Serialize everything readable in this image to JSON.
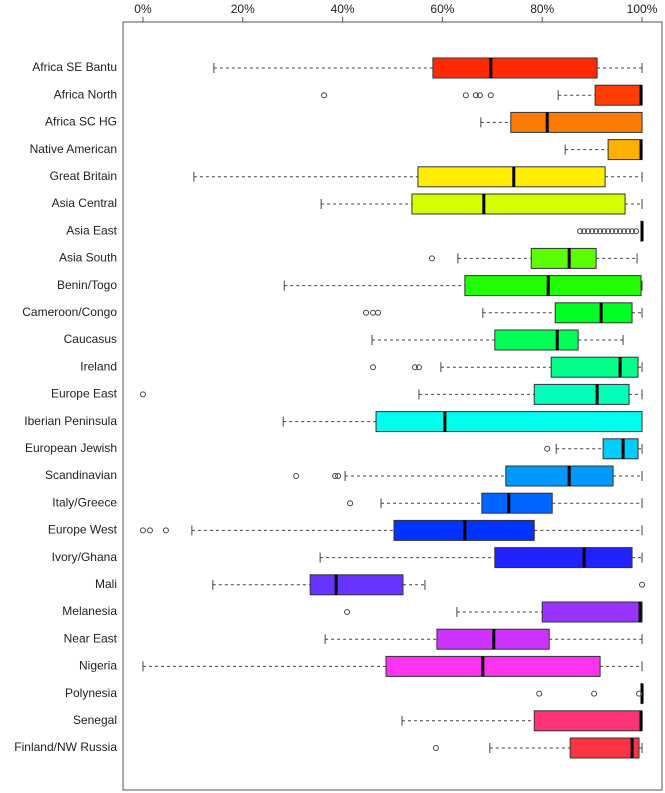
{
  "chart_data": {
    "type": "boxplot",
    "orientation": "horizontal",
    "categories": [
      "Africa SE Bantu",
      "Africa North",
      "Africa SC HG",
      "Native American",
      "Great Britain",
      "Asia Central",
      "Asia East",
      "Asia South",
      "Benin/Togo",
      "Cameroon/Congo",
      "Caucasus",
      "Ireland",
      "Europe East",
      "Iberian Peninsula",
      "European Jewish",
      "Scandinavian",
      "Italy/Greece",
      "Europe West",
      "Ivory/Ghana",
      "Mali",
      "Melanesia",
      "Near East",
      "Nigeria",
      "Polynesia",
      "Senegal",
      "Finland/NW Russia"
    ],
    "boxes": [
      {
        "min": 14.2,
        "q1": 58.1,
        "median": 69.7,
        "q3": 91.0,
        "max": 100,
        "outliers": [],
        "color": "#ff2a00"
      },
      {
        "min": 83.2,
        "q1": 90.6,
        "median": 99.8,
        "q3": 100,
        "max": 100,
        "outliers": [
          36.3,
          64.7,
          66.7,
          67.5,
          69.7
        ],
        "color": "#ff3d00"
      },
      {
        "min": 67.7,
        "q1": 73.7,
        "median": 81.0,
        "q3": 100,
        "max": 100,
        "outliers": [],
        "color": "#ff7a00"
      },
      {
        "min": 84.6,
        "q1": 93.2,
        "median": 99.8,
        "q3": 100,
        "max": 100,
        "outliers": [],
        "color": "#ffb000"
      },
      {
        "min": 10.2,
        "q1": 55.1,
        "median": 74.3,
        "q3": 92.6,
        "max": 100,
        "outliers": [],
        "color": "#ffee00"
      },
      {
        "min": 35.7,
        "q1": 53.9,
        "median": 68.3,
        "q3": 96.6,
        "max": 100,
        "outliers": [],
        "color": "#d4ff00"
      },
      {
        "min": 99.8,
        "q1": 99.8,
        "median": 100,
        "q3": 100,
        "max": 100,
        "outliers": [
          87.6,
          88.4,
          89.2,
          90.0,
          90.8,
          91.6,
          92.4,
          93.2,
          94.0,
          94.8,
          95.6,
          96.4,
          97.2,
          98.0,
          98.8
        ],
        "color": "#99ff00"
      },
      {
        "min": 63.1,
        "q1": 77.8,
        "median": 85.4,
        "q3": 90.8,
        "max": 99.0,
        "outliers": [
          57.9
        ],
        "color": "#5aff00"
      },
      {
        "min": 28.3,
        "q1": 64.5,
        "median": 81.2,
        "q3": 99.8,
        "max": 100,
        "outliers": [],
        "color": "#22ff00"
      },
      {
        "min": 68.1,
        "q1": 82.6,
        "median": 91.8,
        "q3": 98.0,
        "max": 100,
        "outliers": [
          44.7,
          46.1,
          47.1
        ],
        "color": "#00ff22"
      },
      {
        "min": 45.9,
        "q1": 70.5,
        "median": 83.0,
        "q3": 87.2,
        "max": 96.2,
        "outliers": [],
        "color": "#00ff55"
      },
      {
        "min": 59.7,
        "q1": 81.8,
        "median": 95.6,
        "q3": 99.2,
        "max": 100,
        "outliers": [
          46.1,
          54.5,
          55.3
        ],
        "color": "#00ff88"
      },
      {
        "min": 55.3,
        "q1": 78.4,
        "median": 91.0,
        "q3": 97.4,
        "max": 100,
        "outliers": [
          0
        ],
        "color": "#00ffbb"
      },
      {
        "min": 28.1,
        "q1": 46.7,
        "median": 60.5,
        "q3": 100,
        "max": 100,
        "outliers": [],
        "color": "#00ffee"
      },
      {
        "min": 82.8,
        "q1": 92.2,
        "median": 96.2,
        "q3": 99.2,
        "max": 100,
        "outliers": [
          81.0
        ],
        "color": "#00ccff"
      },
      {
        "min": 40.5,
        "q1": 72.7,
        "median": 85.4,
        "q3": 94.2,
        "max": 100,
        "outliers": [
          30.7,
          38.5,
          39.1
        ],
        "color": "#0099ff"
      },
      {
        "min": 47.7,
        "q1": 67.9,
        "median": 73.3,
        "q3": 82.0,
        "max": 100,
        "outliers": [
          41.5
        ],
        "color": "#0066ff"
      },
      {
        "min": 9.8,
        "q1": 50.3,
        "median": 64.5,
        "q3": 78.4,
        "max": 100,
        "outliers": [
          0,
          1.4,
          4.6
        ],
        "color": "#0033ff"
      },
      {
        "min": 35.5,
        "q1": 70.5,
        "median": 88.4,
        "q3": 98.0,
        "max": 100,
        "outliers": [],
        "color": "#2222ff"
      },
      {
        "min": 14.0,
        "q1": 33.5,
        "median": 38.7,
        "q3": 52.1,
        "max": 56.5,
        "outliers": [
          100
        ],
        "color": "#6633ff"
      },
      {
        "min": 62.9,
        "q1": 80.0,
        "median": 99.6,
        "q3": 100,
        "max": 100,
        "outliers": [
          40.9
        ],
        "color": "#9933ff"
      },
      {
        "min": 36.5,
        "q1": 58.9,
        "median": 70.3,
        "q3": 81.4,
        "max": 100,
        "outliers": [],
        "color": "#cc33ff"
      },
      {
        "min": 0,
        "q1": 48.7,
        "median": 68.1,
        "q3": 91.6,
        "max": 100,
        "outliers": [],
        "color": "#ff33ee"
      },
      {
        "min": 99.8,
        "q1": 99.8,
        "median": 100,
        "q3": 100,
        "max": 100,
        "outliers": [
          79.4,
          90.4,
          99.4
        ],
        "color": "#ff33aa"
      },
      {
        "min": 51.9,
        "q1": 78.4,
        "median": 99.8,
        "q3": 100,
        "max": 100,
        "outliers": [],
        "color": "#ff3377"
      },
      {
        "min": 69.5,
        "q1": 85.6,
        "median": 98.0,
        "q3": 99.4,
        "max": 100,
        "outliers": [
          58.7
        ],
        "color": "#ff3344"
      }
    ],
    "xlim": [
      -4,
      104
    ],
    "xticks": [
      {
        "value": 0,
        "label": "0%"
      },
      {
        "value": 20,
        "label": "20%"
      },
      {
        "value": 40,
        "label": "40%"
      },
      {
        "value": 60,
        "label": "60%"
      },
      {
        "value": 80,
        "label": "80%"
      },
      {
        "value": 100,
        "label": "100%"
      }
    ]
  }
}
